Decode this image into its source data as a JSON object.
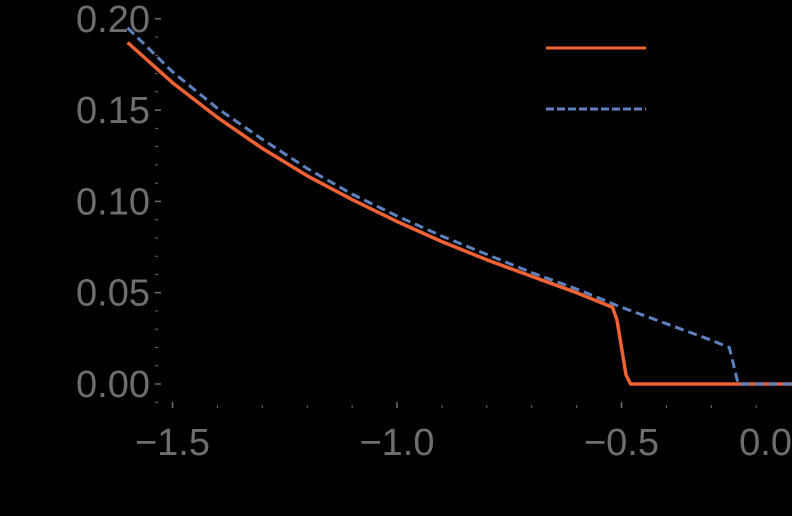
{
  "chart_data": {
    "type": "line",
    "title": "",
    "xlabel": "",
    "ylabel": "",
    "xlim": [
      -1.6,
      0.07
    ],
    "ylim": [
      -0.012,
      0.203
    ],
    "grid": false,
    "legend_position": "top-right",
    "x_ticks": [
      -1.5,
      -1.0,
      -0.5,
      0.0
    ],
    "x_tick_labels": [
      "−1.5",
      "−1.0",
      "−0.5",
      "0.0"
    ],
    "y_ticks": [
      0.0,
      0.05,
      0.1,
      0.15,
      0.2
    ],
    "y_tick_labels": [
      "0.00",
      "0.05",
      "0.10",
      "0.15",
      "0.20"
    ],
    "series": [
      {
        "name": "",
        "style": "solid",
        "color": "#EE6233",
        "x": [
          -1.6,
          -1.5,
          -1.4,
          -1.3,
          -1.2,
          -1.1,
          -1.0,
          -0.9,
          -0.8,
          -0.7,
          -0.6,
          -0.52,
          -0.51,
          -0.49,
          -0.48,
          0.07
        ],
        "y": [
          0.187,
          0.165,
          0.146,
          0.129,
          0.114,
          0.101,
          0.089,
          0.078,
          0.068,
          0.059,
          0.05,
          0.042,
          0.035,
          0.005,
          0.0,
          0.0
        ]
      },
      {
        "name": "",
        "style": "dashed",
        "color": "#5E81C0",
        "x": [
          -1.6,
          -1.5,
          -1.4,
          -1.3,
          -1.2,
          -1.1,
          -1.0,
          -0.9,
          -0.8,
          -0.7,
          -0.6,
          -0.5,
          -0.4,
          -0.3,
          -0.26,
          -0.25,
          -0.24,
          0.07
        ],
        "y": [
          0.195,
          0.171,
          0.151,
          0.134,
          0.118,
          0.104,
          0.092,
          0.081,
          0.071,
          0.061,
          0.052,
          0.042,
          0.033,
          0.024,
          0.02,
          0.01,
          0.0,
          0.0
        ]
      }
    ]
  },
  "legend": {
    "entries": [
      {
        "label": "",
        "color": "#EE6233",
        "style": "solid"
      },
      {
        "label": "",
        "color": "#5E81C0",
        "style": "dashed"
      }
    ]
  },
  "colors": {
    "background": "#000000",
    "axis": "#6e6e6e",
    "tick_label": "#6e6e6e"
  }
}
